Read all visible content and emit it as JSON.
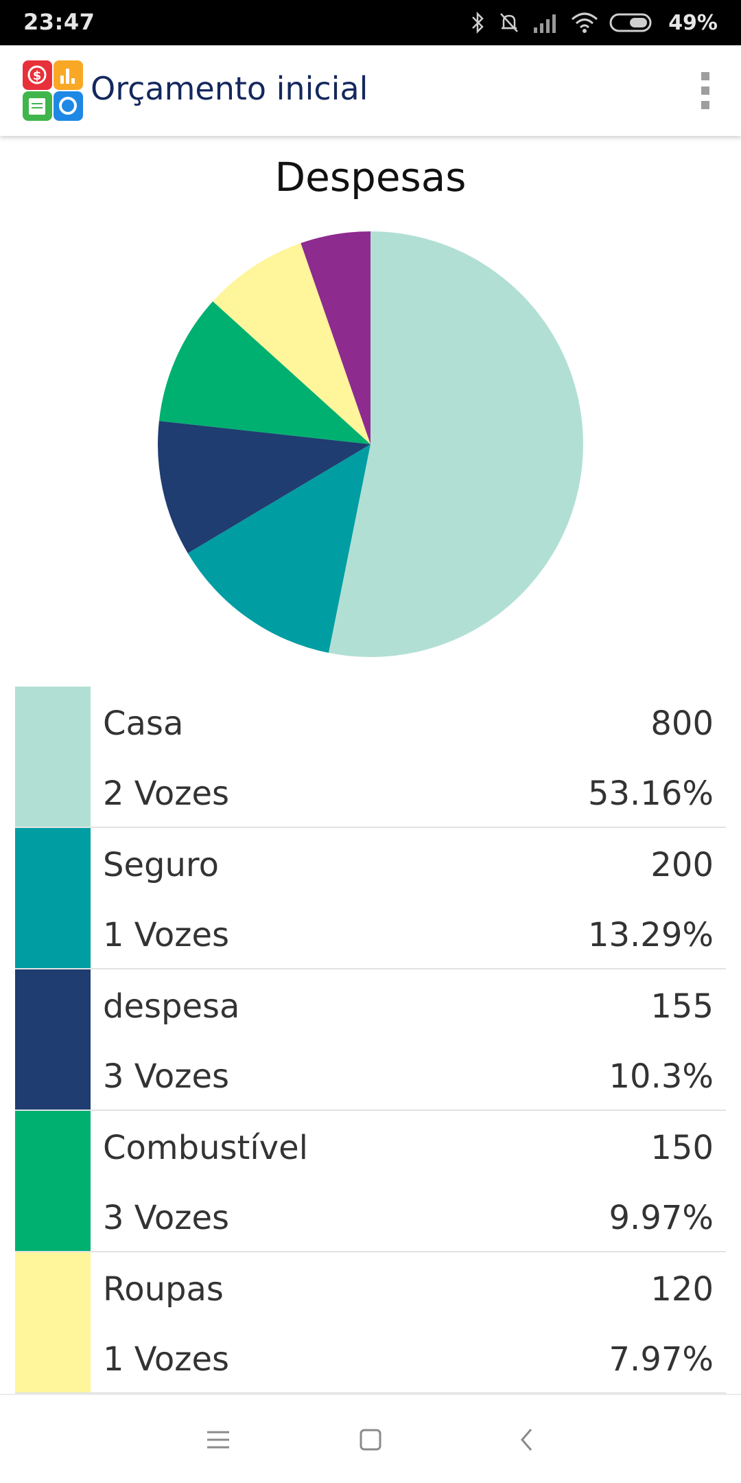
{
  "status_bar": {
    "time": "23:47",
    "battery": "49%",
    "icons": [
      "bluetooth-icon",
      "silent-icon",
      "signal-icon",
      "wifi-icon",
      "battery-icon"
    ]
  },
  "app_bar": {
    "title": "Orçamento inicial",
    "logo_icon": "budget-app-logo",
    "menu_icon": "overflow-menu-icon"
  },
  "chart_data": {
    "type": "pie",
    "title": "Despesas",
    "categories": [
      "Casa",
      "Seguro",
      "despesa",
      "Combustível",
      "Roupas",
      ""
    ],
    "values": [
      800,
      200,
      155,
      150,
      120,
      80
    ],
    "colors": [
      "#b2dfd4",
      "#009da3",
      "#1f3d70",
      "#00b070",
      "#fff59b",
      "#8e2b8f"
    ]
  },
  "legend": {
    "rows": [
      {
        "name": "Casa",
        "votes": "2 Vozes",
        "value": "800",
        "percent": "53.16%",
        "color": "#b2dfd4"
      },
      {
        "name": "Seguro",
        "votes": "1 Vozes",
        "value": "200",
        "percent": "13.29%",
        "color": "#009da3"
      },
      {
        "name": "despesa",
        "votes": "3 Vozes",
        "value": "155",
        "percent": "10.3%",
        "color": "#1f3d70"
      },
      {
        "name": "Combustível",
        "votes": "3 Vozes",
        "value": "150",
        "percent": "9.97%",
        "color": "#00b070"
      },
      {
        "name": "Roupas",
        "votes": "1 Vozes",
        "value": "120",
        "percent": "7.97%",
        "color": "#fff59b"
      }
    ]
  },
  "nav_bar": {
    "icons": [
      "menu-icon",
      "home-icon",
      "back-icon"
    ]
  }
}
